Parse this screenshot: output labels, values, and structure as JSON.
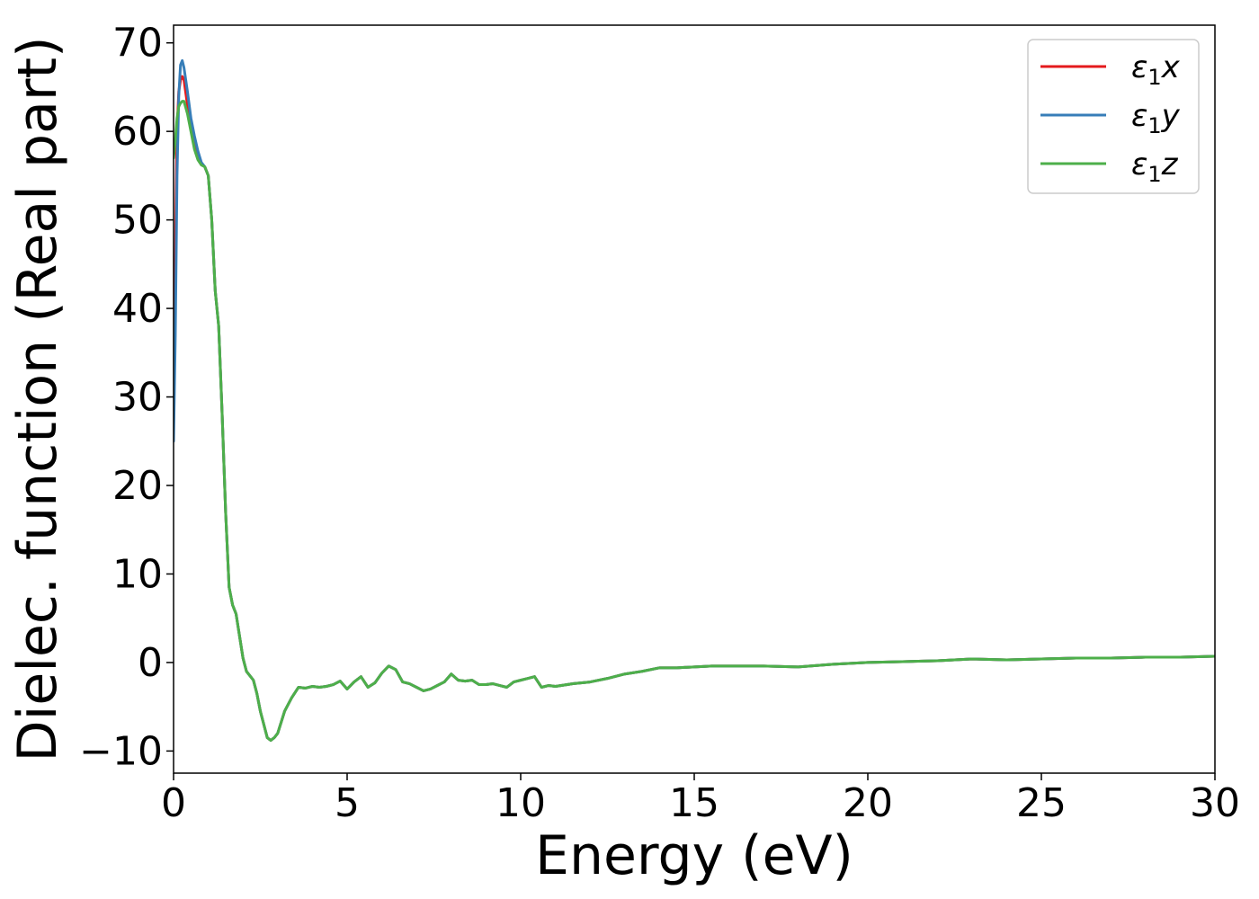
{
  "chart_data": {
    "type": "line",
    "xlabel": "Energy (eV)",
    "ylabel": "Dielec. function (Real part)",
    "xlim": [
      0,
      30
    ],
    "ylim": [
      -12.5,
      72
    ],
    "xticks": [
      0,
      5,
      10,
      15,
      20,
      25,
      30
    ],
    "yticks": [
      -10,
      0,
      10,
      20,
      30,
      40,
      50,
      60,
      70
    ],
    "xtick_labels": [
      "0",
      "5",
      "10",
      "15",
      "20",
      "25",
      "30"
    ],
    "ytick_labels": [
      "−10",
      "0",
      "10",
      "20",
      "30",
      "40",
      "50",
      "60",
      "70"
    ],
    "grid": false,
    "legend": "top-right",
    "series": [
      {
        "name": "ε₁x",
        "legend_base": "ε",
        "legend_sub": "1",
        "legend_var": "x",
        "color": "#e41a1c",
        "x": [
          0.0,
          0.05,
          0.1,
          0.15,
          0.2,
          0.25,
          0.3,
          0.4,
          0.5,
          0.6,
          0.7,
          0.8,
          0.9,
          1.0,
          1.1,
          1.2,
          1.3,
          1.4,
          1.5,
          1.6,
          1.7,
          1.8,
          1.9,
          2.0,
          2.1,
          2.2,
          2.3,
          2.4,
          2.5,
          2.6,
          2.7,
          2.8,
          2.9,
          3.0,
          3.2,
          3.4,
          3.6,
          3.8,
          4.0,
          4.2,
          4.4,
          4.6,
          4.8,
          5.0,
          5.2,
          5.4,
          5.6,
          5.8,
          6.0,
          6.2,
          6.4,
          6.6,
          6.8,
          7.0,
          7.2,
          7.4,
          7.6,
          7.8,
          8.0,
          8.2,
          8.4,
          8.6,
          8.8,
          9.0,
          9.2,
          9.4,
          9.6,
          9.8,
          10.0,
          10.2,
          10.4,
          10.6,
          10.8,
          11.0,
          11.5,
          12.0,
          12.5,
          13.0,
          13.5,
          14.0,
          14.5,
          15.0,
          15.5,
          16.0,
          17.0,
          18.0,
          19.0,
          20.0,
          21.0,
          22.0,
          23.0,
          24.0,
          25.0,
          26.0,
          27.0,
          28.0,
          29.0,
          30.0
        ],
        "values": [
          27.0,
          45.0,
          60.0,
          64.5,
          65.8,
          66.2,
          65.8,
          63.0,
          60.5,
          58.5,
          57.0,
          56.3,
          56.0,
          55.0,
          50.0,
          42.0,
          38.0,
          28.0,
          17.0,
          8.5,
          6.5,
          5.5,
          3.0,
          0.5,
          -1.0,
          -1.5,
          -2.0,
          -3.5,
          -5.5,
          -7.0,
          -8.5,
          -8.8,
          -8.5,
          -8.0,
          -5.5,
          -4.0,
          -2.8,
          -2.9,
          -2.7,
          -2.8,
          -2.7,
          -2.5,
          -2.1,
          -3.0,
          -2.2,
          -1.6,
          -2.8,
          -2.3,
          -1.2,
          -0.4,
          -0.8,
          -2.2,
          -2.4,
          -2.8,
          -3.2,
          -3.0,
          -2.6,
          -2.2,
          -1.3,
          -2.0,
          -2.1,
          -2.0,
          -2.5,
          -2.5,
          -2.4,
          -2.6,
          -2.8,
          -2.2,
          -2.0,
          -1.8,
          -1.6,
          -2.8,
          -2.6,
          -2.7,
          -2.4,
          -2.2,
          -1.8,
          -1.3,
          -1.0,
          -0.6,
          -0.6,
          -0.5,
          -0.4,
          -0.4,
          -0.4,
          -0.5,
          -0.2,
          0.0,
          0.1,
          0.2,
          0.4,
          0.3,
          0.4,
          0.5,
          0.5,
          0.6,
          0.6,
          0.7
        ]
      },
      {
        "name": "ε₁y",
        "legend_base": "ε",
        "legend_sub": "1",
        "legend_var": "y",
        "color": "#377eb8",
        "x": [
          0.0,
          0.05,
          0.1,
          0.15,
          0.2,
          0.25,
          0.3,
          0.4,
          0.5,
          0.6,
          0.7,
          0.8,
          0.9,
          1.0,
          1.1,
          1.2,
          1.3,
          1.4,
          1.5,
          1.6,
          1.7,
          1.8,
          1.9,
          2.0,
          2.1,
          2.2,
          2.3,
          2.4,
          2.5,
          2.6,
          2.7,
          2.8,
          2.9,
          3.0,
          3.2,
          3.4,
          3.6,
          3.8,
          4.0,
          4.2,
          4.4,
          4.6,
          4.8,
          5.0,
          5.2,
          5.4,
          5.6,
          5.8,
          6.0,
          6.2,
          6.4,
          6.6,
          6.8,
          7.0,
          7.2,
          7.4,
          7.6,
          7.8,
          8.0,
          8.2,
          8.4,
          8.6,
          8.8,
          9.0,
          9.2,
          9.4,
          9.6,
          9.8,
          10.0,
          10.2,
          10.4,
          10.6,
          10.8,
          11.0,
          11.5,
          12.0,
          12.5,
          13.0,
          13.5,
          14.0,
          14.5,
          15.0,
          15.5,
          16.0,
          17.0,
          18.0,
          19.0,
          20.0,
          21.0,
          22.0,
          23.0,
          24.0,
          25.0,
          26.0,
          27.0,
          28.0,
          29.0,
          30.0
        ],
        "values": [
          25.0,
          37.0,
          55.0,
          64.0,
          67.5,
          68.0,
          67.2,
          64.5,
          61.5,
          59.5,
          57.8,
          56.5,
          56.0,
          55.0,
          50.0,
          42.0,
          38.0,
          28.0,
          17.0,
          8.5,
          6.5,
          5.5,
          3.0,
          0.5,
          -1.0,
          -1.5,
          -2.0,
          -3.5,
          -5.5,
          -7.0,
          -8.5,
          -8.8,
          -8.5,
          -8.0,
          -5.5,
          -4.0,
          -2.8,
          -2.9,
          -2.7,
          -2.8,
          -2.7,
          -2.5,
          -2.1,
          -3.0,
          -2.2,
          -1.6,
          -2.8,
          -2.3,
          -1.2,
          -0.4,
          -0.8,
          -2.2,
          -2.4,
          -2.8,
          -3.2,
          -3.0,
          -2.6,
          -2.2,
          -1.3,
          -2.0,
          -2.1,
          -2.0,
          -2.5,
          -2.5,
          -2.4,
          -2.6,
          -2.8,
          -2.2,
          -2.0,
          -1.8,
          -1.6,
          -2.8,
          -2.6,
          -2.7,
          -2.4,
          -2.2,
          -1.8,
          -1.3,
          -1.0,
          -0.6,
          -0.6,
          -0.5,
          -0.4,
          -0.4,
          -0.4,
          -0.5,
          -0.2,
          0.0,
          0.1,
          0.2,
          0.4,
          0.3,
          0.4,
          0.5,
          0.5,
          0.6,
          0.6,
          0.7
        ]
      },
      {
        "name": "ε₁z",
        "legend_base": "ε",
        "legend_sub": "1",
        "legend_var": "z",
        "color": "#4daf4a",
        "x": [
          0.0,
          0.05,
          0.1,
          0.15,
          0.2,
          0.25,
          0.3,
          0.4,
          0.5,
          0.6,
          0.7,
          0.8,
          0.9,
          1.0,
          1.1,
          1.2,
          1.3,
          1.4,
          1.5,
          1.6,
          1.7,
          1.8,
          1.9,
          2.0,
          2.1,
          2.2,
          2.3,
          2.4,
          2.5,
          2.6,
          2.7,
          2.8,
          2.9,
          3.0,
          3.2,
          3.4,
          3.6,
          3.8,
          4.0,
          4.2,
          4.4,
          4.6,
          4.8,
          5.0,
          5.2,
          5.4,
          5.6,
          5.8,
          6.0,
          6.2,
          6.4,
          6.6,
          6.8,
          7.0,
          7.2,
          7.4,
          7.6,
          7.8,
          8.0,
          8.2,
          8.4,
          8.6,
          8.8,
          9.0,
          9.2,
          9.4,
          9.6,
          9.8,
          10.0,
          10.2,
          10.4,
          10.6,
          10.8,
          11.0,
          11.5,
          12.0,
          12.5,
          13.0,
          13.5,
          14.0,
          14.5,
          15.0,
          15.5,
          16.0,
          17.0,
          18.0,
          19.0,
          20.0,
          21.0,
          22.0,
          23.0,
          24.0,
          25.0,
          26.0,
          27.0,
          28.0,
          29.0,
          30.0
        ],
        "values": [
          57.0,
          59.0,
          61.5,
          62.8,
          63.2,
          63.4,
          63.4,
          62.0,
          60.0,
          58.0,
          56.8,
          56.2,
          56.0,
          55.0,
          50.0,
          42.0,
          38.0,
          28.0,
          17.0,
          8.5,
          6.5,
          5.5,
          3.0,
          0.5,
          -1.0,
          -1.5,
          -2.0,
          -3.5,
          -5.5,
          -7.0,
          -8.5,
          -8.8,
          -8.5,
          -8.0,
          -5.5,
          -4.0,
          -2.8,
          -2.9,
          -2.7,
          -2.8,
          -2.7,
          -2.5,
          -2.1,
          -3.0,
          -2.2,
          -1.6,
          -2.8,
          -2.3,
          -1.2,
          -0.4,
          -0.8,
          -2.2,
          -2.4,
          -2.8,
          -3.2,
          -3.0,
          -2.6,
          -2.2,
          -1.3,
          -2.0,
          -2.1,
          -2.0,
          -2.5,
          -2.5,
          -2.4,
          -2.6,
          -2.8,
          -2.2,
          -2.0,
          -1.8,
          -1.6,
          -2.8,
          -2.6,
          -2.7,
          -2.4,
          -2.2,
          -1.8,
          -1.3,
          -1.0,
          -0.6,
          -0.6,
          -0.5,
          -0.4,
          -0.4,
          -0.4,
          -0.5,
          -0.2,
          0.0,
          0.1,
          0.2,
          0.4,
          0.3,
          0.4,
          0.5,
          0.5,
          0.6,
          0.6,
          0.7
        ]
      }
    ]
  }
}
